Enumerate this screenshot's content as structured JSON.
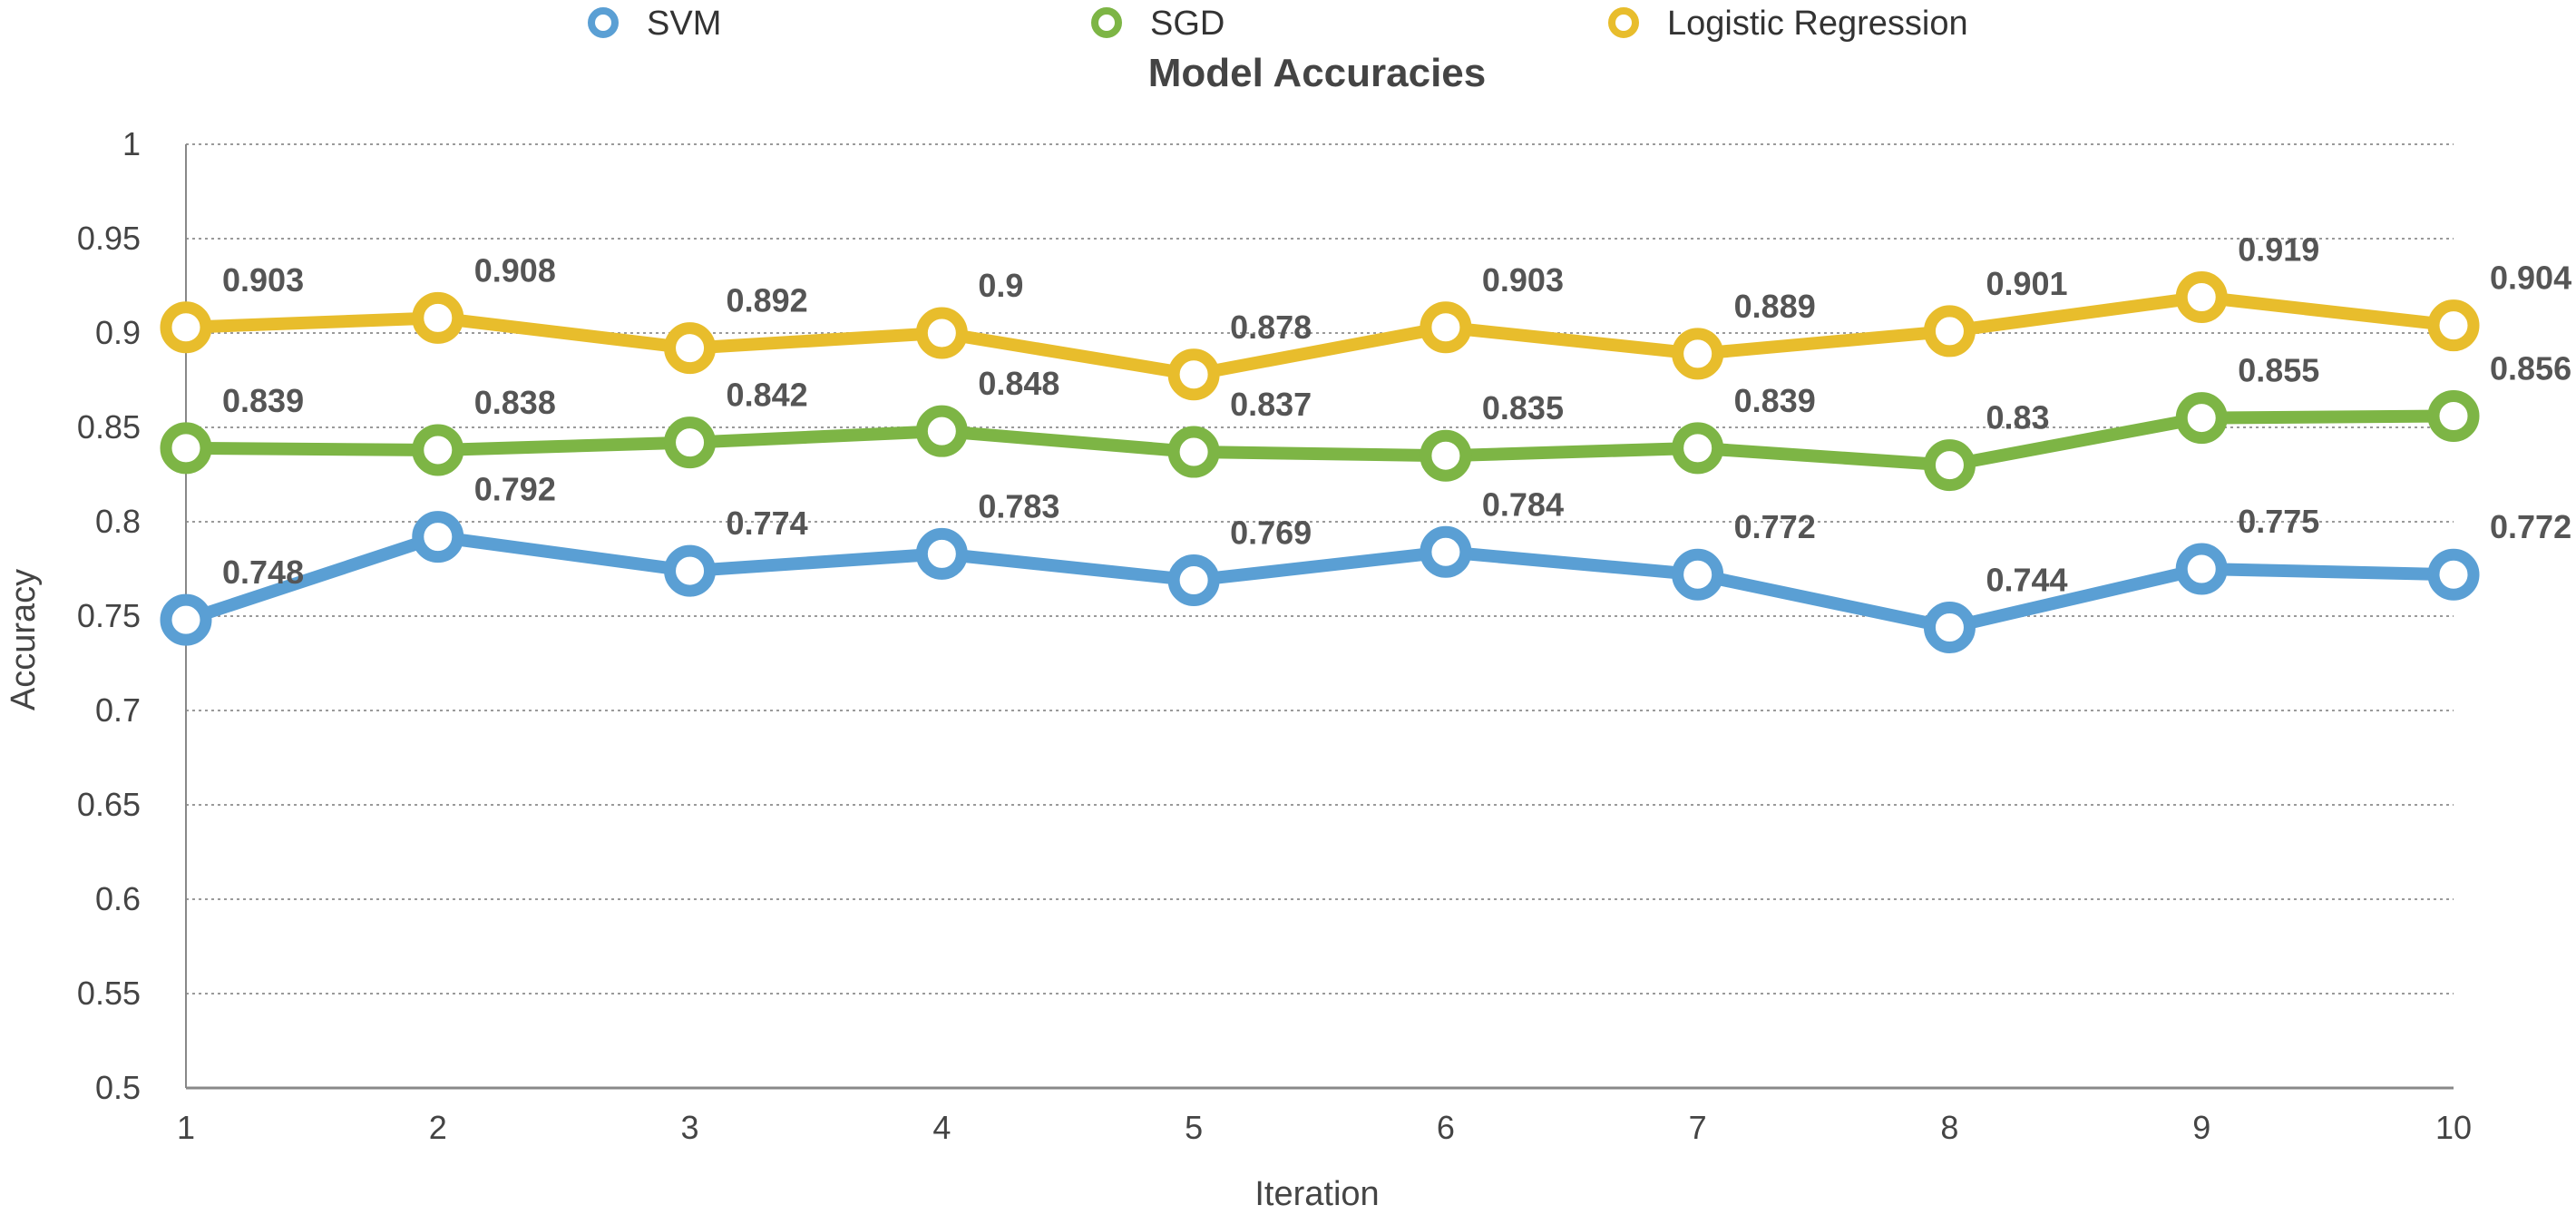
{
  "chart_data": {
    "type": "line",
    "title": "Model Accuracies",
    "xlabel": "Iteration",
    "ylabel": "Accuracy",
    "x": [
      1,
      2,
      3,
      4,
      5,
      6,
      7,
      8,
      9,
      10
    ],
    "x_tick_labels": [
      "1",
      "2",
      "3",
      "4",
      "5",
      "6",
      "7",
      "8",
      "9",
      "10"
    ],
    "ylim": [
      0.5,
      1
    ],
    "y_tick_labels": [
      "0.5",
      "0.55",
      "0.6",
      "0.65",
      "0.7",
      "0.75",
      "0.8",
      "0.85",
      "0.9",
      "0.95",
      "1"
    ],
    "grid": "horizontal dotted",
    "legend_position": "top",
    "series": [
      {
        "name": "SVM",
        "color": "#5a9fd4",
        "values": [
          0.748,
          0.792,
          0.774,
          0.783,
          0.769,
          0.784,
          0.772,
          0.744,
          0.775,
          0.772
        ],
        "labels": [
          "0.748",
          "0.792",
          "0.774",
          "0.783",
          "0.769",
          "0.784",
          "0.772",
          "0.744",
          "0.775",
          "0.772"
        ]
      },
      {
        "name": "SGD",
        "color": "#7db545",
        "values": [
          0.839,
          0.838,
          0.842,
          0.848,
          0.837,
          0.835,
          0.839,
          0.83,
          0.855,
          0.856
        ],
        "labels": [
          "0.839",
          "0.838",
          "0.842",
          "0.848",
          "0.837",
          "0.835",
          "0.839",
          "0.83",
          "0.855",
          "0.856"
        ]
      },
      {
        "name": "Logistic Regression",
        "color": "#e8bd2c",
        "values": [
          0.903,
          0.908,
          0.892,
          0.9,
          0.878,
          0.903,
          0.889,
          0.901,
          0.919,
          0.904
        ],
        "labels": [
          "0.903",
          "0.908",
          "0.892",
          "0.9",
          "0.878",
          "0.903",
          "0.889",
          "0.901",
          "0.919",
          "0.904"
        ]
      }
    ]
  }
}
